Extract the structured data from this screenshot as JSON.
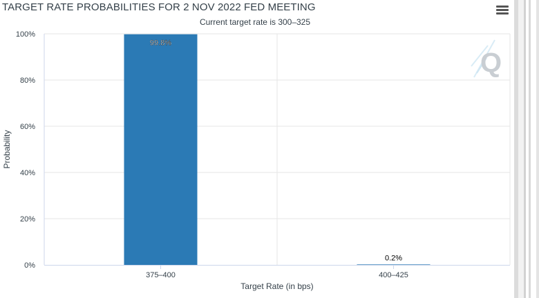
{
  "header": {
    "title": "TARGET RATE PROBABILITIES FOR 2 NOV 2022 FED MEETING",
    "subtitle": "Current target rate is 300–325"
  },
  "menu": {
    "icon": "hamburger-menu-icon"
  },
  "watermark": {
    "icon": "q-logo-icon",
    "letter": "Q"
  },
  "colors": {
    "bar": "#2b7ab5",
    "grid": "#e6e6e6",
    "axis": "#ccd6eb",
    "text": "#333f48"
  },
  "chart_data": {
    "type": "bar",
    "title": "TARGET RATE PROBABILITIES FOR 2 NOV 2022 FED MEETING",
    "subtitle": "Current target rate is 300–325",
    "xlabel": "Target Rate (in bps)",
    "ylabel": "Probability",
    "categories": [
      "375–400",
      "400–425"
    ],
    "values": [
      99.8,
      0.2
    ],
    "data_labels": [
      "99.8%",
      "0.2%"
    ],
    "ylim": [
      0,
      100
    ],
    "yticks": [
      0,
      20,
      40,
      60,
      80,
      100
    ],
    "ytick_labels": [
      "0%",
      "20%",
      "40%",
      "60%",
      "80%",
      "100%"
    ],
    "grid": true,
    "legend": "none"
  }
}
